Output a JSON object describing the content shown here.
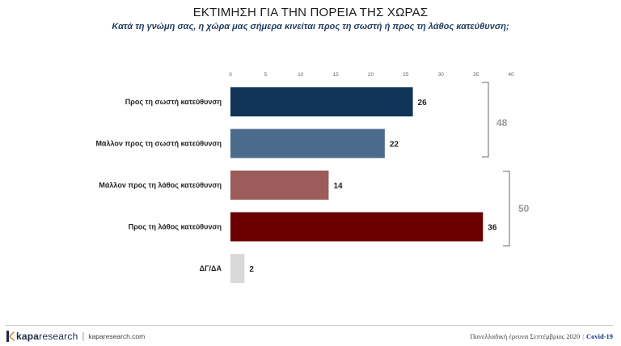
{
  "header": {
    "title": "ΕΚΤΙΜΗΣΗ ΓΙΑ ΤΗΝ ΠΟΡΕΙΑ ΤΗΣ ΧΩΡΑΣ",
    "subtitle": "Κατά τη γνώμη σας, η χώρα μας σήμερα κινείται προς τη σωστή ή προς τη λάθος κατεύθυνση;"
  },
  "chart_data": {
    "type": "bar",
    "orientation": "horizontal",
    "xlim": [
      0,
      40
    ],
    "ticks": [
      0,
      5,
      10,
      15,
      20,
      25,
      30,
      35,
      40
    ],
    "tick_labels": [
      "0",
      "5",
      "10",
      "15",
      "20",
      "25",
      "30",
      "35",
      "40"
    ],
    "categories": [
      "Προς τη σωστή κατεύθυνση",
      "Μάλλον προς τη σωστή κατεύθυνση",
      "Μάλλον προς τη λάθος κατεύθυνση",
      "Προς τη λάθος κατεύθυνση",
      "ΔΓ/ΔΑ"
    ],
    "values": [
      26,
      22,
      14,
      36,
      2
    ],
    "value_labels": [
      "26",
      "22",
      "14",
      "36",
      "2"
    ],
    "colors": [
      "#0f3457",
      "#4a6b8c",
      "#9c5c5c",
      "#6b0000",
      "#d9d9d9"
    ],
    "groups": [
      {
        "label": "48",
        "categories": [
          0,
          1
        ]
      },
      {
        "label": "50",
        "categories": [
          2,
          3
        ]
      }
    ],
    "grid": false
  },
  "footer": {
    "logo_kapa": "kapa",
    "logo_research": "research",
    "url": "kaparesearch.com",
    "survey": "Πανελλαδική έρευνα Σεπτέμβριος 2020",
    "tag": "Covid-19"
  },
  "colors": {
    "bracket": "#9a9a9a",
    "brand": "#1e2a44"
  }
}
